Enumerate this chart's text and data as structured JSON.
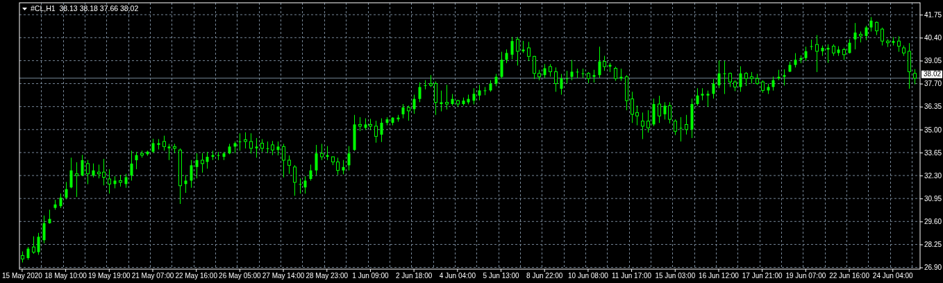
{
  "chart_data": {
    "type": "candlestick",
    "title": "#CL,H1  38.13 38.18 37.66 38.02",
    "categories": [
      "15 May 2020",
      null,
      null,
      null,
      null,
      null,
      null,
      null,
      "18 May 10:00",
      null,
      null,
      null,
      null,
      null,
      null,
      null,
      "19 May 19:00",
      null,
      null,
      null,
      null,
      null,
      null,
      null,
      "21 May 07:00",
      null,
      null,
      null,
      null,
      null,
      null,
      null,
      "22 May 16:00",
      null,
      null,
      null,
      null,
      null,
      null,
      null,
      "26 May 05:00",
      null,
      null,
      null,
      null,
      null,
      null,
      null,
      "27 May 14:00",
      null,
      null,
      null,
      null,
      null,
      null,
      null,
      "28 May 23:00",
      null,
      null,
      null,
      null,
      null,
      null,
      null,
      "1 Jun 09:00",
      null,
      null,
      null,
      null,
      null,
      null,
      null,
      "2 Jun 18:00",
      null,
      null,
      null,
      null,
      null,
      null,
      null,
      "4 Jun 04:00",
      null,
      null,
      null,
      null,
      null,
      null,
      null,
      "5 Jun 13:00",
      null,
      null,
      null,
      null,
      null,
      null,
      null,
      "8 Jun 22:00",
      null,
      null,
      null,
      null,
      null,
      null,
      null,
      "10 Jun 08:00",
      null,
      null,
      null,
      null,
      null,
      null,
      null,
      "11 Jun 17:00",
      null,
      null,
      null,
      null,
      null,
      null,
      null,
      "15 Jun 03:00",
      null,
      null,
      null,
      null,
      null,
      null,
      null,
      "16 Jun 12:00",
      null,
      null,
      null,
      null,
      null,
      null,
      null,
      "17 Jun 21:00",
      null,
      null,
      null,
      null,
      null,
      null,
      null,
      "19 Jun 07:00",
      null,
      null,
      null,
      null,
      null,
      null,
      null,
      "22 Jun 16:00",
      null,
      null,
      null,
      null,
      null,
      null,
      null,
      "24 Jun 04:00",
      null,
      null,
      null,
      null
    ],
    "ohlc": [
      [
        27.6,
        27.84,
        27.19,
        27.4
      ],
      [
        27.45,
        28.1,
        27.35,
        28.0
      ],
      [
        28.1,
        28.73,
        27.7,
        27.8
      ],
      [
        27.8,
        28.93,
        27.64,
        28.7
      ],
      [
        28.5,
        29.95,
        28.32,
        29.5
      ],
      [
        29.5,
        30.29,
        29.47,
        29.75
      ],
      [
        30.4,
        30.87,
        30.29,
        30.6
      ],
      [
        30.5,
        31.24,
        30.39,
        31.0
      ],
      [
        31.0,
        31.92,
        30.9,
        31.5
      ],
      [
        31.6,
        33.35,
        31.55,
        32.6
      ],
      [
        32.4,
        33.08,
        31.04,
        32.3
      ],
      [
        32.3,
        33.51,
        32.26,
        33.2
      ],
      [
        33.0,
        33.21,
        31.79,
        32.4
      ],
      [
        32.3,
        33.01,
        32.19,
        32.6
      ],
      [
        32.5,
        32.94,
        32.13,
        32.4
      ],
      [
        32.5,
        33.28,
        31.72,
        32.2
      ],
      [
        32.1,
        32.67,
        31.24,
        31.8
      ],
      [
        31.8,
        32.26,
        31.55,
        32.0
      ],
      [
        32.0,
        32.33,
        31.65,
        31.9
      ],
      [
        31.8,
        32.4,
        31.58,
        32.2
      ],
      [
        32.3,
        33.76,
        32.0,
        33.0
      ],
      [
        33.2,
        33.69,
        32.67,
        33.5
      ],
      [
        33.6,
        33.76,
        33.35,
        33.5
      ],
      [
        33.55,
        33.76,
        33.46,
        33.7
      ],
      [
        33.7,
        34.46,
        33.62,
        34.2
      ],
      [
        34.1,
        34.44,
        33.83,
        34.2
      ],
      [
        34.3,
        34.64,
        33.76,
        34.0
      ],
      [
        33.9,
        34.16,
        33.21,
        34.0
      ],
      [
        34.0,
        34.16,
        33.62,
        33.9
      ],
      [
        33.8,
        33.89,
        30.63,
        31.7
      ],
      [
        31.8,
        32.33,
        31.28,
        32.0
      ],
      [
        32.0,
        33.21,
        31.58,
        32.9
      ],
      [
        32.8,
        33.62,
        32.13,
        33.2
      ],
      [
        33.2,
        33.62,
        32.47,
        33.0
      ],
      [
        33.1,
        33.69,
        32.7,
        33.4
      ],
      [
        33.4,
        33.76,
        33.21,
        33.5
      ],
      [
        33.5,
        33.69,
        33.21,
        33.5
      ],
      [
        33.4,
        33.69,
        33.21,
        33.6
      ],
      [
        33.6,
        34.16,
        33.55,
        34.0
      ],
      [
        34.0,
        34.3,
        33.62,
        34.2
      ],
      [
        34.3,
        34.78,
        33.76,
        34.3
      ],
      [
        34.4,
        34.84,
        33.89,
        34.3
      ],
      [
        34.3,
        34.78,
        33.59,
        33.9
      ],
      [
        33.9,
        34.5,
        33.35,
        34.0
      ],
      [
        34.2,
        34.44,
        33.69,
        33.9
      ],
      [
        33.9,
        34.3,
        33.62,
        33.9
      ],
      [
        34.1,
        34.33,
        33.5,
        33.8
      ],
      [
        33.8,
        34.3,
        33.48,
        34.0
      ],
      [
        34.0,
        34.16,
        32.19,
        33.2
      ],
      [
        33.2,
        33.48,
        32.4,
        32.9
      ],
      [
        32.8,
        32.91,
        31.11,
        31.9
      ],
      [
        31.8,
        32.13,
        31.24,
        31.8
      ],
      [
        31.6,
        32.26,
        31.24,
        32.0
      ],
      [
        32.1,
        32.94,
        32.0,
        32.6
      ],
      [
        32.6,
        34.1,
        32.33,
        33.6
      ],
      [
        33.6,
        34.16,
        33.21,
        33.4
      ],
      [
        33.4,
        34.03,
        33.21,
        33.5
      ],
      [
        33.4,
        33.42,
        32.91,
        33.1
      ],
      [
        33.1,
        33.35,
        32.33,
        32.6
      ],
      [
        32.6,
        33.21,
        32.37,
        32.8
      ],
      [
        32.9,
        34.03,
        32.6,
        33.6
      ],
      [
        33.8,
        35.86,
        33.75,
        35.3
      ],
      [
        35.3,
        35.73,
        34.91,
        35.2
      ],
      [
        35.1,
        35.66,
        34.98,
        35.3
      ],
      [
        35.3,
        35.63,
        34.98,
        35.2
      ],
      [
        35.2,
        35.52,
        34.23,
        34.6
      ],
      [
        34.7,
        35.66,
        34.27,
        35.4
      ],
      [
        35.4,
        35.73,
        35.25,
        35.6
      ],
      [
        35.4,
        35.73,
        35.25,
        35.7
      ],
      [
        35.6,
        35.86,
        35.46,
        35.7
      ],
      [
        35.9,
        36.5,
        35.66,
        36.3
      ],
      [
        36.3,
        36.41,
        35.52,
        36.1
      ],
      [
        36.2,
        37.05,
        35.93,
        36.8
      ],
      [
        36.8,
        37.77,
        36.61,
        37.5
      ],
      [
        37.6,
        37.9,
        37.36,
        37.6
      ],
      [
        37.7,
        38.2,
        37.5,
        37.6
      ],
      [
        37.7,
        37.83,
        35.86,
        36.6
      ],
      [
        36.5,
        37.29,
        36.07,
        36.6
      ],
      [
        36.6,
        37.63,
        36.18,
        36.5
      ],
      [
        36.5,
        37.09,
        36.41,
        36.8
      ],
      [
        36.7,
        36.75,
        36.34,
        36.5
      ],
      [
        36.5,
        36.88,
        36.41,
        36.7
      ],
      [
        36.6,
        37.05,
        36.48,
        36.8
      ],
      [
        36.7,
        37.43,
        36.48,
        37.1
      ],
      [
        37.0,
        37.63,
        36.72,
        37.3
      ],
      [
        37.3,
        37.5,
        37.02,
        37.3
      ],
      [
        37.3,
        37.9,
        37.22,
        37.7
      ],
      [
        37.7,
        38.27,
        37.54,
        38.1
      ],
      [
        38.1,
        39.57,
        38.0,
        39.1
      ],
      [
        39.1,
        39.71,
        38.9,
        39.5
      ],
      [
        39.4,
        40.44,
        39.13,
        40.2
      ],
      [
        40.3,
        40.44,
        38.76,
        39.6
      ],
      [
        39.6,
        40.21,
        39.5,
        39.7
      ],
      [
        39.8,
        40.15,
        39.03,
        39.3
      ],
      [
        39.3,
        39.33,
        37.97,
        38.3
      ],
      [
        38.3,
        38.51,
        37.9,
        38.1
      ],
      [
        38.2,
        38.85,
        38.04,
        38.6
      ],
      [
        38.7,
        38.85,
        38.11,
        38.4
      ],
      [
        38.4,
        38.65,
        37.22,
        37.7
      ],
      [
        37.4,
        38.27,
        37.05,
        38.0
      ],
      [
        38.0,
        38.45,
        37.7,
        38.0
      ],
      [
        38.1,
        39.09,
        37.9,
        38.4
      ],
      [
        38.4,
        38.58,
        38.04,
        38.4
      ],
      [
        38.3,
        38.58,
        38.04,
        38.3
      ],
      [
        38.3,
        38.38,
        37.73,
        38.0
      ],
      [
        38.1,
        38.51,
        37.77,
        38.2
      ],
      [
        38.2,
        39.87,
        38.04,
        39.0
      ],
      [
        39.0,
        39.33,
        38.45,
        38.7
      ],
      [
        38.7,
        38.92,
        38.38,
        38.8
      ],
      [
        38.6,
        38.7,
        37.86,
        38.0
      ],
      [
        38.0,
        38.58,
        37.86,
        38.1
      ],
      [
        38.1,
        38.2,
        36.14,
        36.7
      ],
      [
        36.8,
        37.22,
        35.39,
        35.9
      ],
      [
        36.0,
        36.41,
        35.25,
        35.8
      ],
      [
        35.5,
        36.0,
        34.44,
        35.2
      ],
      [
        35.5,
        36.14,
        34.82,
        35.1
      ],
      [
        35.3,
        36.82,
        35.2,
        36.5
      ],
      [
        36.5,
        36.99,
        35.39,
        35.8
      ],
      [
        35.9,
        36.61,
        35.59,
        36.4
      ],
      [
        36.4,
        36.61,
        35.36,
        35.6
      ],
      [
        35.5,
        35.6,
        34.68,
        34.9
      ],
      [
        35.1,
        35.73,
        34.3,
        35.1
      ],
      [
        35.3,
        35.86,
        34.71,
        35.0
      ],
      [
        35.0,
        36.82,
        34.5,
        36.5
      ],
      [
        36.5,
        37.43,
        36.4,
        37.0
      ],
      [
        37.0,
        37.43,
        36.72,
        37.1
      ],
      [
        37.0,
        37.29,
        36.34,
        37.1
      ],
      [
        37.1,
        37.97,
        36.82,
        37.7
      ],
      [
        37.6,
        39.06,
        37.43,
        38.3
      ],
      [
        38.3,
        39.03,
        37.09,
        38.3
      ],
      [
        38.3,
        38.35,
        37.5,
        37.8
      ],
      [
        37.8,
        37.9,
        37.26,
        37.5
      ],
      [
        37.5,
        38.72,
        37.22,
        38.3
      ],
      [
        38.3,
        38.38,
        37.56,
        38.0
      ],
      [
        38.1,
        38.38,
        37.7,
        38.0
      ],
      [
        38.0,
        38.27,
        37.63,
        37.7
      ],
      [
        37.8,
        37.9,
        37.16,
        37.3
      ],
      [
        37.3,
        37.7,
        37.09,
        37.5
      ],
      [
        37.5,
        38.11,
        37.29,
        37.9
      ],
      [
        38.0,
        38.51,
        37.9,
        38.1
      ],
      [
        38.1,
        38.54,
        37.59,
        38.2
      ],
      [
        38.4,
        38.99,
        38.38,
        38.8
      ],
      [
        38.8,
        39.49,
        38.65,
        39.1
      ],
      [
        39.1,
        39.36,
        38.9,
        39.2
      ],
      [
        39.2,
        39.87,
        39.03,
        39.6
      ],
      [
        39.9,
        40.28,
        39.67,
        39.9
      ],
      [
        40.0,
        40.55,
        38.38,
        39.6
      ],
      [
        39.6,
        39.94,
        39.33,
        39.8
      ],
      [
        39.7,
        40.01,
        38.92,
        39.8
      ],
      [
        39.9,
        40.01,
        39.33,
        39.5
      ],
      [
        39.5,
        39.9,
        39.33,
        39.7
      ],
      [
        39.7,
        39.81,
        39.1,
        39.4
      ],
      [
        39.5,
        40.31,
        39.47,
        40.1
      ],
      [
        40.3,
        41.26,
        39.71,
        40.7
      ],
      [
        40.6,
        40.76,
        40.12,
        40.5
      ],
      [
        40.5,
        41.1,
        40.25,
        41.0
      ],
      [
        41.0,
        41.61,
        40.76,
        41.4
      ],
      [
        41.3,
        41.35,
        40.55,
        40.8
      ],
      [
        40.9,
        40.99,
        39.94,
        40.2
      ],
      [
        40.2,
        40.31,
        39.85,
        40.1
      ],
      [
        40.1,
        40.44,
        39.94,
        40.2
      ],
      [
        40.2,
        40.48,
        39.57,
        39.9
      ],
      [
        39.8,
        39.94,
        39.33,
        39.5
      ],
      [
        39.6,
        40.08,
        37.4,
        38.4
      ],
      [
        38.3,
        38.55,
        37.66,
        38.02
      ]
    ],
    "color": "#00ff00",
    "ylim": [
      26.8,
      42.45
    ],
    "yticks": [
      {
        "value": 26.9,
        "label": "26.90"
      },
      28.25,
      {
        "value": 29.6,
        "label": "29.60"
      },
      30.95,
      {
        "value": 32.3,
        "label": "32.30"
      },
      33.65,
      {
        "value": 35,
        "label": "35.00"
      },
      36.35,
      {
        "value": 37.7,
        "label": "37.70"
      },
      39.05,
      {
        "value": 40.4,
        "label": "40.40"
      },
      41.75
    ],
    "grid": true,
    "ref_lines": [
      {
        "axis": "y",
        "value": 38.02,
        "label": "38.02",
        "color": "#778899"
      }
    ]
  }
}
